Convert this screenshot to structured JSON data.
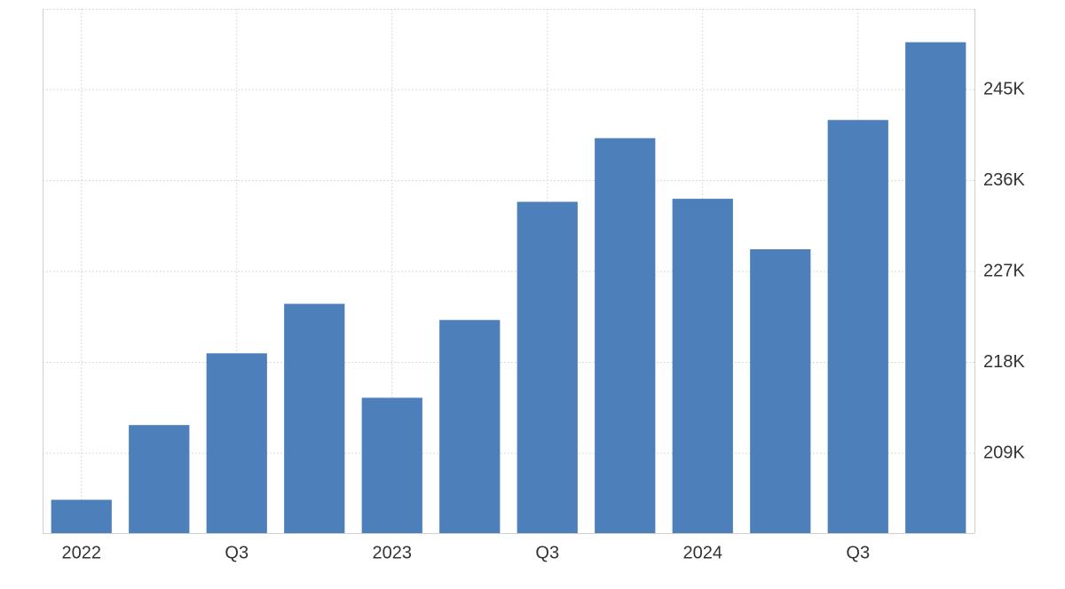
{
  "chart_data": {
    "type": "bar",
    "categories": [
      "2022",
      null,
      "Q3",
      null,
      "2023",
      null,
      "Q3",
      null,
      "2024",
      null,
      "Q3",
      null
    ],
    "values": [
      204.4,
      211.8,
      218.9,
      223.8,
      214.5,
      222.2,
      233.9,
      240.2,
      234.2,
      229.2,
      242.0,
      249.7
    ],
    "color": "#4d80bb",
    "ylim": [
      201.1,
      253
    ],
    "yticks": [
      {
        "value": 209,
        "label": "209K"
      },
      {
        "value": 218,
        "label": "218K"
      },
      {
        "value": 227,
        "label": "227K"
      },
      {
        "value": 236,
        "label": "236K"
      },
      {
        "value": 245,
        "label": "245K"
      }
    ],
    "grid": true
  }
}
